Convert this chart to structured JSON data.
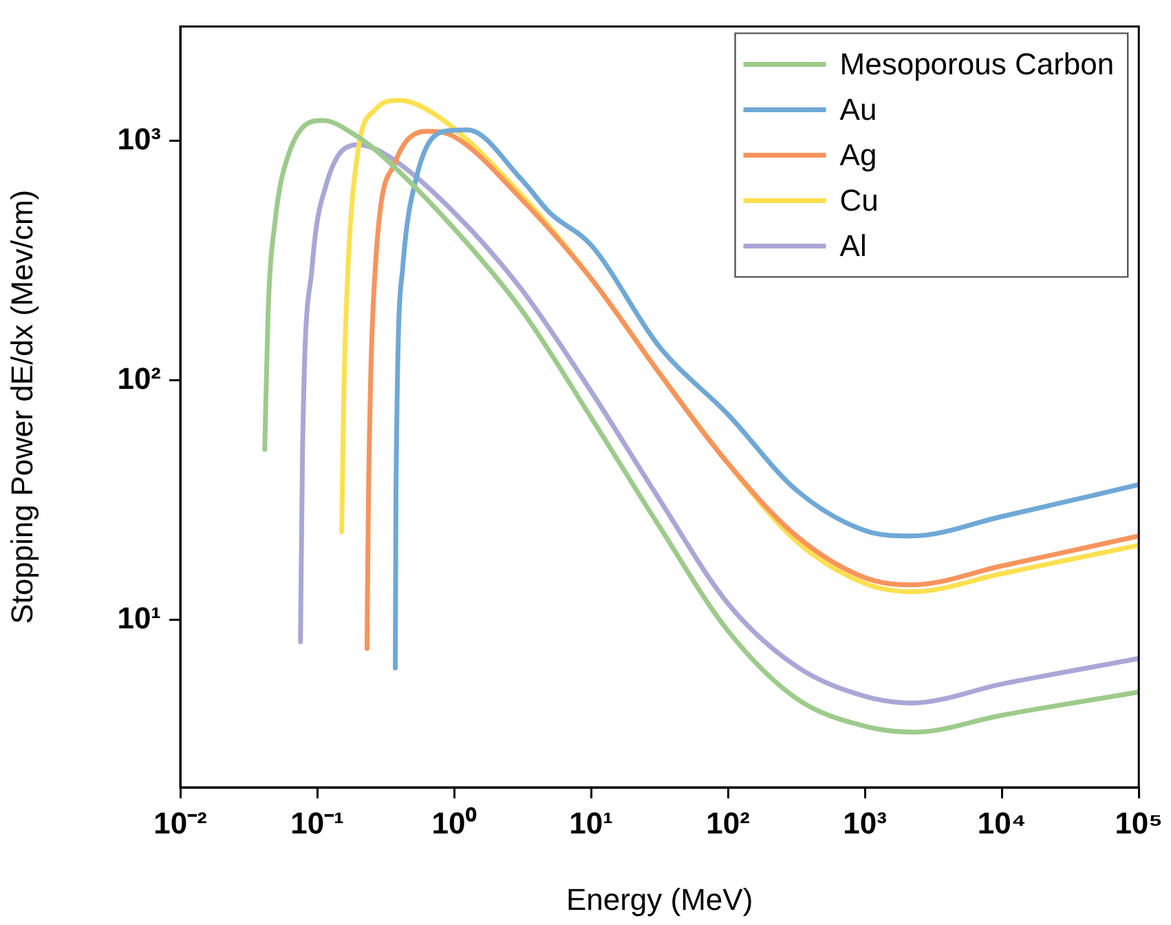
{
  "chart_data": {
    "type": "line",
    "xlabel": "Energy (MeV)",
    "ylabel": "Stopping Power dE/dx (Mev/cm)",
    "log": "xy",
    "grid": false,
    "legend": "top right",
    "marker": "none",
    "line_style": "solid",
    "xlim": [
      0.01,
      100000
    ],
    "ylim": [
      2,
      3000
    ],
    "xticks": [
      {
        "value": 0.01,
        "label": "10⁻²"
      },
      {
        "value": 0.1,
        "label": "10⁻¹"
      },
      {
        "value": 1,
        "label": "10⁰"
      },
      {
        "value": 10,
        "label": "10¹"
      },
      {
        "value": 100,
        "label": "10²"
      },
      {
        "value": 1000,
        "label": "10³"
      },
      {
        "value": 10000,
        "label": "10⁴"
      },
      {
        "value": 100000,
        "label": "10⁵"
      }
    ],
    "yticks": [
      {
        "value": 10,
        "label": "10¹"
      },
      {
        "value": 100,
        "label": "10²"
      },
      {
        "value": 1000,
        "label": "10³"
      }
    ],
    "series": [
      {
        "name": "Mesoporous Carbon",
        "color": "#9dcb8b",
        "x": [
          0.0414,
          0.0438,
          0.0492,
          0.0619,
          0.11,
          0.197,
          0.312,
          1,
          3.1,
          10,
          31.6,
          100,
          316,
          1000,
          2300,
          10000,
          100000
        ],
        "values": [
          51.5,
          192,
          458,
          880,
          1215,
          1040,
          845,
          430,
          197,
          70,
          24.5,
          9.0,
          4.7,
          3.6,
          3.4,
          4.0,
          5.0
        ]
      },
      {
        "name": "Au",
        "color": "#6fa8d6",
        "x": [
          0.372,
          0.376,
          0.422,
          0.531,
          0.843,
          1.25,
          3.1,
          5,
          10,
          31.6,
          100,
          316,
          1000,
          2200,
          10000,
          100000
        ],
        "values": [
          6.3,
          34,
          298,
          704,
          1095,
          1110,
          690,
          500,
          367,
          138,
          72,
          34.8,
          23.6,
          22.4,
          27,
          36.7
        ]
      },
      {
        "name": "Ag",
        "color": "#f7945d",
        "x": [
          0.231,
          0.237,
          0.266,
          0.367,
          0.624,
          1,
          3.1,
          10,
          31.6,
          100,
          316,
          1000,
          2200,
          10000,
          100000
        ],
        "values": [
          7.6,
          34,
          298,
          801,
          1095,
          1040,
          571,
          266,
          107,
          45,
          22.4,
          15.0,
          14.0,
          16.8,
          22.4
        ]
      },
      {
        "name": "Cu",
        "color": "#fde050",
        "x": [
          0.151,
          0.156,
          0.168,
          0.197,
          0.266,
          0.394,
          0.787,
          3.1,
          10,
          31.6,
          100,
          316,
          1000,
          2200,
          10000,
          100000
        ],
        "values": [
          23.3,
          81,
          298,
          880,
          1349,
          1476,
          1247,
          594,
          266,
          107,
          45,
          21.3,
          14.2,
          13.1,
          15.6,
          20.5
        ]
      },
      {
        "name": "Al",
        "color": "#a9a7d6",
        "x": [
          0.0755,
          0.0782,
          0.0919,
          0.116,
          0.197,
          0.312,
          1,
          3.1,
          10,
          31.6,
          100,
          316,
          1000,
          2200,
          10000,
          100000
        ],
        "values": [
          8.1,
          52,
          298,
          651,
          962,
          880,
          502,
          240,
          90,
          31.8,
          11.7,
          6.4,
          4.8,
          4.5,
          5.4,
          6.9
        ]
      }
    ]
  }
}
